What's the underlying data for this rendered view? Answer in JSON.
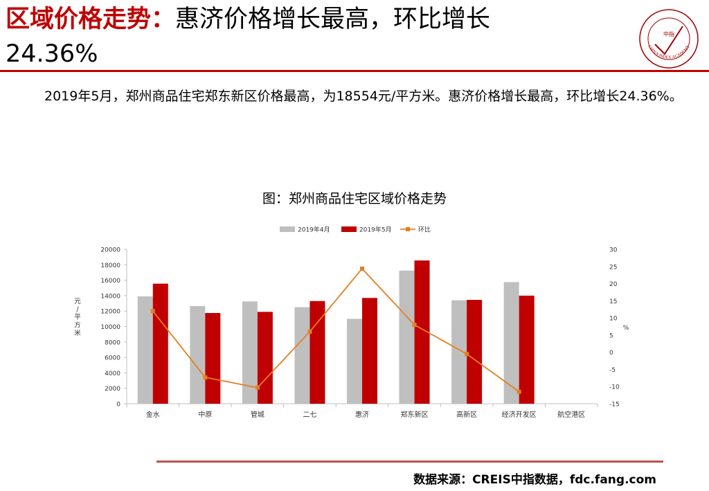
{
  "header": {
    "title_red": "区域价格走势：",
    "title_black": "惠济价格增长最高，环比增长",
    "title_line2": "24.36%"
  },
  "logo": {
    "org_en": "CHINA INDEX ACADEMY",
    "seal_text": "中指"
  },
  "paragraph": "2019年5月，郑州商品住宅郑东新区价格最高，为18554元/平方米。惠济价格增长最高，环比增长24.36%。",
  "footer": {
    "source": "数据来源：CREIS中指数据，fdc.fang.com"
  },
  "colors": {
    "accent": "#c00000",
    "bar_prev": "#bfbfbf",
    "bar_curr": "#c00000",
    "line": "#e67e22"
  },
  "chart_data": {
    "type": "bar",
    "title": "图：郑州商品住宅区域价格走势",
    "categories": [
      "金水",
      "中原",
      "管城",
      "二七",
      "惠济",
      "郑东新区",
      "高新区",
      "经济开发区",
      "航空港区"
    ],
    "series": [
      {
        "name": "2019年4月",
        "type": "bar",
        "axis": "left",
        "values": [
          13900,
          12650,
          13250,
          12500,
          11000,
          17250,
          13400,
          15750,
          null
        ]
      },
      {
        "name": "2019年5月",
        "type": "bar",
        "axis": "left",
        "values": [
          15550,
          11750,
          11900,
          13300,
          13700,
          18554,
          13450,
          14000,
          null
        ]
      },
      {
        "name": "环比",
        "type": "line",
        "axis": "right",
        "values": [
          12,
          -7.3,
          -10.3,
          6,
          24.36,
          8,
          -0.5,
          -11.5,
          null
        ]
      }
    ],
    "ylabel": "元/平方米",
    "ylim": [
      0,
      20000
    ],
    "yticks": [
      0,
      2000,
      4000,
      6000,
      8000,
      10000,
      12000,
      14000,
      16000,
      18000,
      20000
    ],
    "y2label": "%",
    "y2lim": [
      -15,
      30
    ],
    "y2ticks": [
      -15,
      -10,
      -5,
      0,
      5,
      10,
      15,
      20,
      25,
      30
    ],
    "legend_position": "top",
    "grid": false
  }
}
